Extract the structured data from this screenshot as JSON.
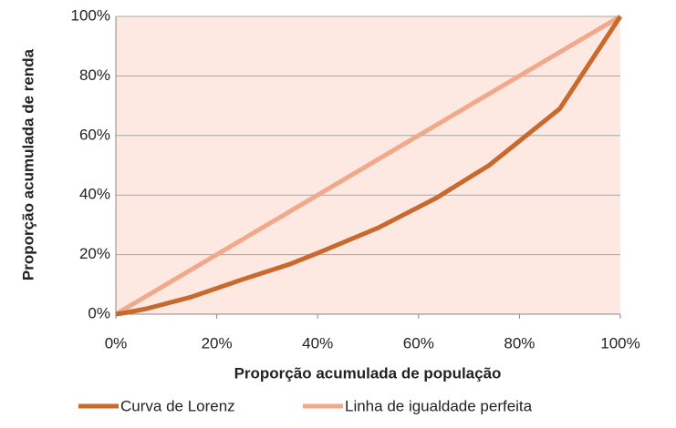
{
  "chart_data": {
    "type": "line",
    "xlabel": "Proporção acumulada de população",
    "ylabel": "Proporção acumulada de renda",
    "series": [
      {
        "name": "Curva de Lorenz",
        "color": "#c8692d",
        "width": 5,
        "x": [
          0,
          2,
          6,
          15,
          25,
          34.5,
          40,
          52,
          63.5,
          74,
          88,
          100
        ],
        "values": [
          0,
          0.5,
          1.8,
          5.8,
          11.6,
          16.8,
          20.5,
          29,
          39,
          50,
          69,
          100
        ]
      },
      {
        "name": "Linha de igualdade perfeita",
        "color": "#f0a98a",
        "width": 5,
        "x": [
          0,
          100
        ],
        "values": [
          0,
          100
        ]
      }
    ],
    "xlim": [
      0,
      100
    ],
    "ylim": [
      0,
      100
    ],
    "xticks": [
      {
        "value": 0,
        "label": "0%"
      },
      {
        "value": 20,
        "label": "20%"
      },
      {
        "value": 40,
        "label": "40%"
      },
      {
        "value": 60,
        "label": "60%"
      },
      {
        "value": 80,
        "label": "80%"
      },
      {
        "value": 100,
        "label": "100%"
      }
    ],
    "yticks": [
      {
        "value": 0,
        "label": "0%"
      },
      {
        "value": 20,
        "label": "20%"
      },
      {
        "value": 40,
        "label": "40%"
      },
      {
        "value": 60,
        "label": "60%"
      },
      {
        "value": 80,
        "label": "80%"
      },
      {
        "value": 100,
        "label": "100%"
      }
    ],
    "grid": true,
    "plot_background": "#fde9e1",
    "legend": "bottom"
  }
}
